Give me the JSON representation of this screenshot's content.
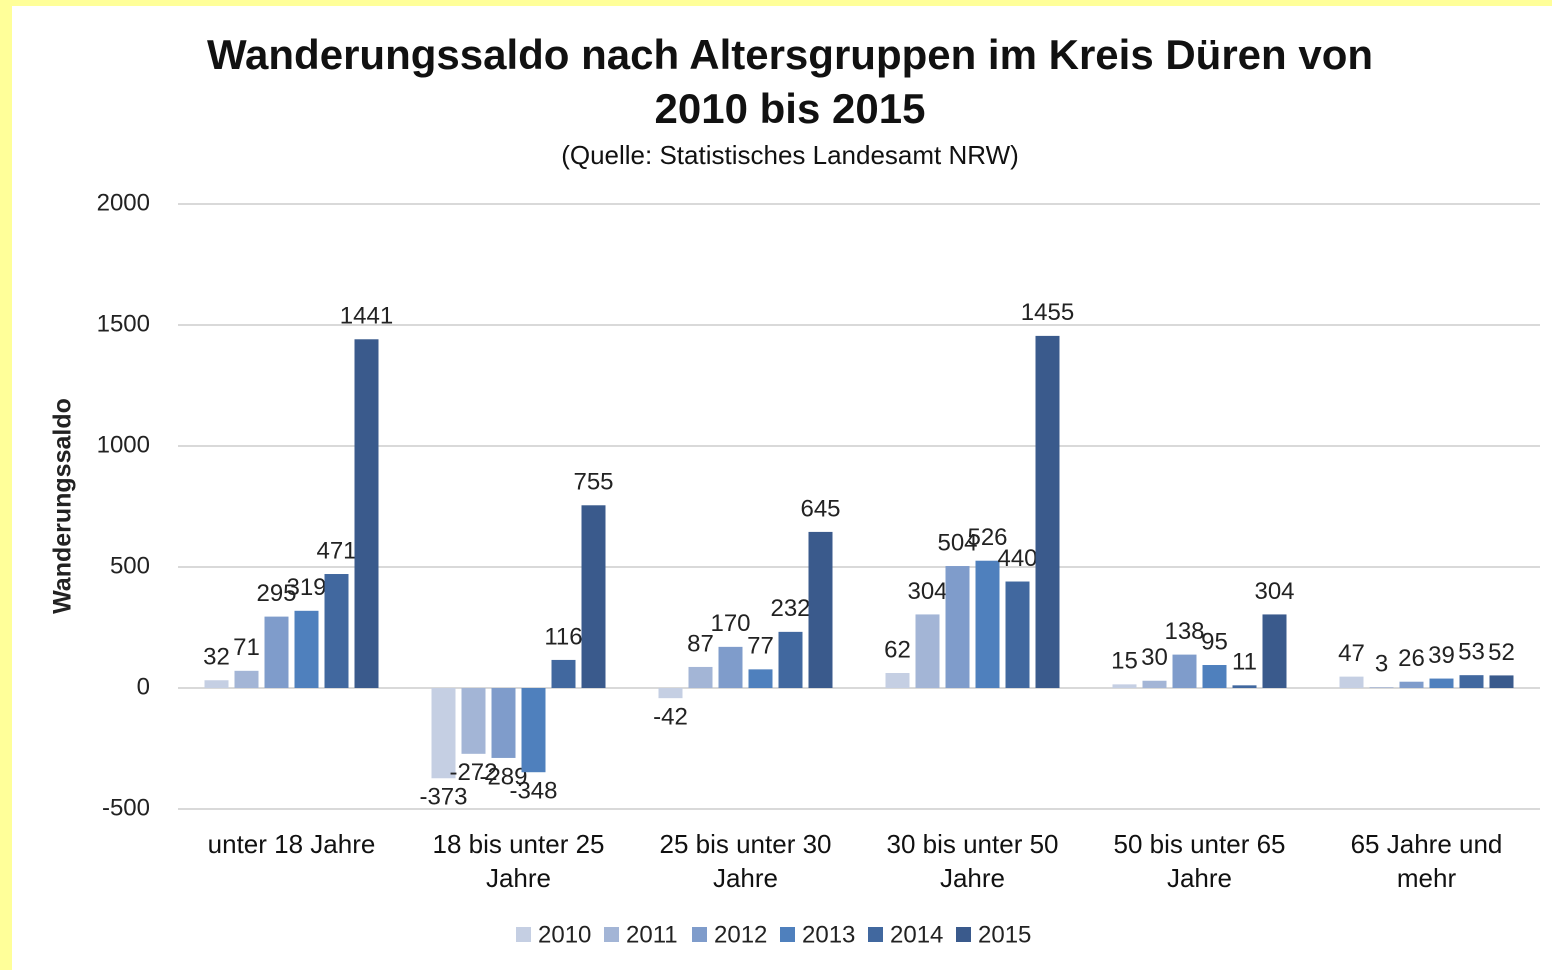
{
  "chart_data": {
    "type": "bar",
    "title": "Wanderungssaldo nach Altersgruppen im Kreis Düren von 2010 bis 2015",
    "subtitle": "(Quelle: Statistisches Landesamt NRW)",
    "y_label": "Wanderungssaldo",
    "categories": [
      "unter 18 Jahre",
      "18 bis unter 25 Jahre",
      "25 bis unter 30 Jahre",
      "30 bis unter 50 Jahre",
      "50 bis unter 65 Jahre",
      "65 Jahre und mehr"
    ],
    "series": [
      {
        "name": "2010",
        "color": "#c5cfe3",
        "values": [
          32,
          -373,
          -42,
          62,
          15,
          47
        ]
      },
      {
        "name": "2011",
        "color": "#a3b5d6",
        "values": [
          71,
          -272,
          87,
          304,
          30,
          3
        ]
      },
      {
        "name": "2012",
        "color": "#7f9ccb",
        "values": [
          295,
          -289,
          170,
          504,
          138,
          26
        ]
      },
      {
        "name": "2013",
        "color": "#4f80bd",
        "values": [
          319,
          -348,
          77,
          526,
          95,
          39
        ]
      },
      {
        "name": "2014",
        "color": "#41689f",
        "values": [
          471,
          116,
          232,
          440,
          11,
          53
        ]
      },
      {
        "name": "2015",
        "color": "#3a5a8c",
        "values": [
          1441,
          755,
          645,
          1455,
          304,
          52
        ]
      }
    ],
    "ylim": [
      -500,
      2000
    ],
    "yticks": [
      -500,
      0,
      500,
      1000,
      1500,
      2000
    ],
    "grid": true,
    "legend": "bottom"
  }
}
